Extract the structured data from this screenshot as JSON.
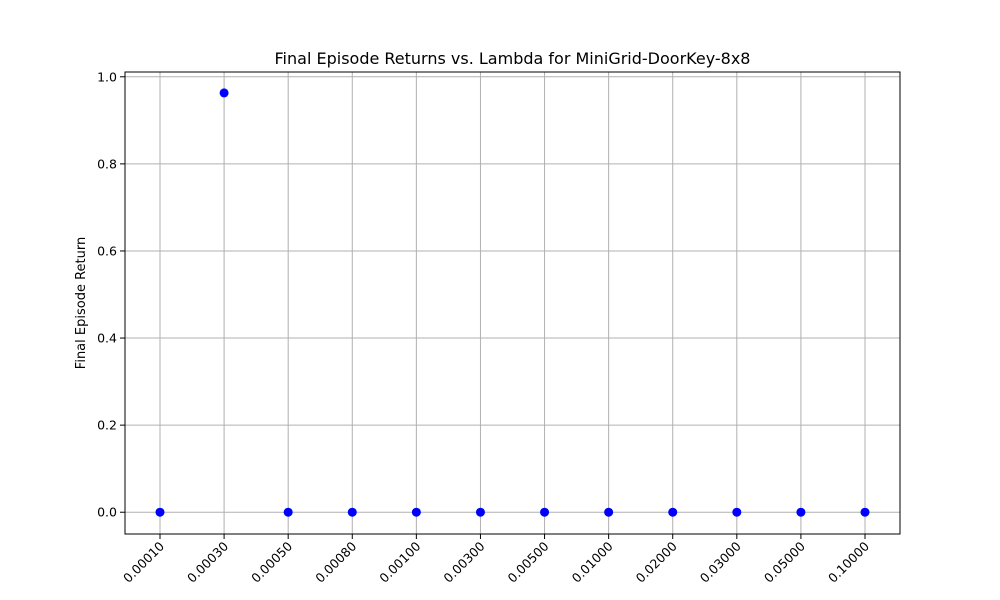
{
  "chart_data": {
    "type": "scatter",
    "title": "Final Episode Returns vs. Lambda for MiniGrid-DoorKey-8x8",
    "xlabel": "",
    "ylabel": "Final Episode Return",
    "x_scale": "categorical",
    "categories": [
      "0.00010",
      "0.00030",
      "0.00050",
      "0.00080",
      "0.00100",
      "0.00300",
      "0.00500",
      "0.01000",
      "0.02000",
      "0.03000",
      "0.05000",
      "0.10000"
    ],
    "values": [
      0.0,
      0.963,
      0.0,
      0.0,
      0.0,
      0.0,
      0.0,
      0.0,
      0.0,
      0.0,
      0.0,
      0.0
    ],
    "ylim": [
      -0.05,
      1.011
    ],
    "yticks": [
      0.0,
      0.2,
      0.4,
      0.6,
      0.8,
      1.0
    ],
    "ytick_labels": [
      "0.0",
      "0.2",
      "0.4",
      "0.6",
      "0.8",
      "1.0"
    ],
    "grid": true,
    "legend": "none",
    "marker_color": "#0000ff"
  }
}
